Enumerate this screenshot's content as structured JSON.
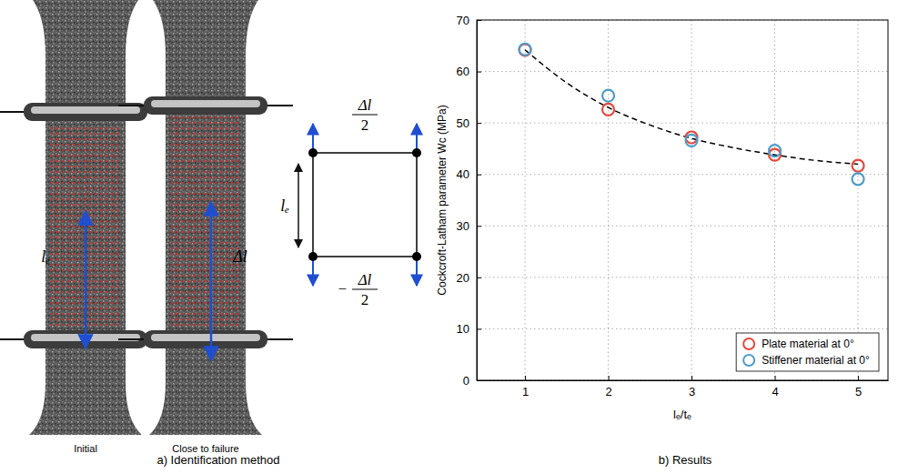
{
  "chart_data": {
    "type": "scatter",
    "ylabel": "Cockcroft-Latham parameter Wc (MPa)",
    "xlabel": "lₑ/tₑ",
    "xlim": [
      0.42,
      5.36
    ],
    "xticks": [
      1,
      2,
      3,
      4,
      5
    ],
    "ylim": [
      0,
      70
    ],
    "yticks": [
      0,
      10,
      20,
      30,
      40,
      50,
      60,
      70
    ],
    "grid": true,
    "legend": "lower right",
    "series": [
      {
        "name": "Plate material at 0°",
        "type": "scatter",
        "marker": "circle",
        "color": "#e8473b",
        "x": [
          1,
          2,
          3,
          4,
          5
        ],
        "values": [
          64.2,
          52.6,
          47.2,
          43.8,
          41.7
        ]
      },
      {
        "name": "Stiffener material at 0°",
        "type": "scatter",
        "marker": "circle",
        "color": "#4f9dc9",
        "x": [
          1,
          2,
          3,
          4,
          5
        ],
        "values": [
          64.3,
          55.3,
          46.6,
          44.6,
          39.1
        ]
      },
      {
        "type": "line",
        "line_style": "dashed",
        "color": "#000000",
        "x": [
          1,
          1.5,
          2,
          2.5,
          3,
          3.5,
          4,
          4.5,
          5
        ],
        "values": [
          64.2,
          57.8,
          53.0,
          49.6,
          47.0,
          45.2,
          43.8,
          42.7,
          42.0
        ]
      }
    ]
  },
  "diagram": {
    "photos": [
      {
        "caption": "Initial",
        "length_label": "lₑ"
      },
      {
        "caption": "Close to failure",
        "length_label": "Δl"
      }
    ],
    "element": {
      "length_label": "lₑ",
      "top_displacement": {
        "numerator": "Δl",
        "denominator": "2"
      },
      "bottom_displacement": {
        "prefix": "−",
        "numerator": "Δl",
        "denominator": "2"
      }
    }
  },
  "figure": {
    "captions": [
      "a) Identification method",
      "b) Results"
    ]
  }
}
